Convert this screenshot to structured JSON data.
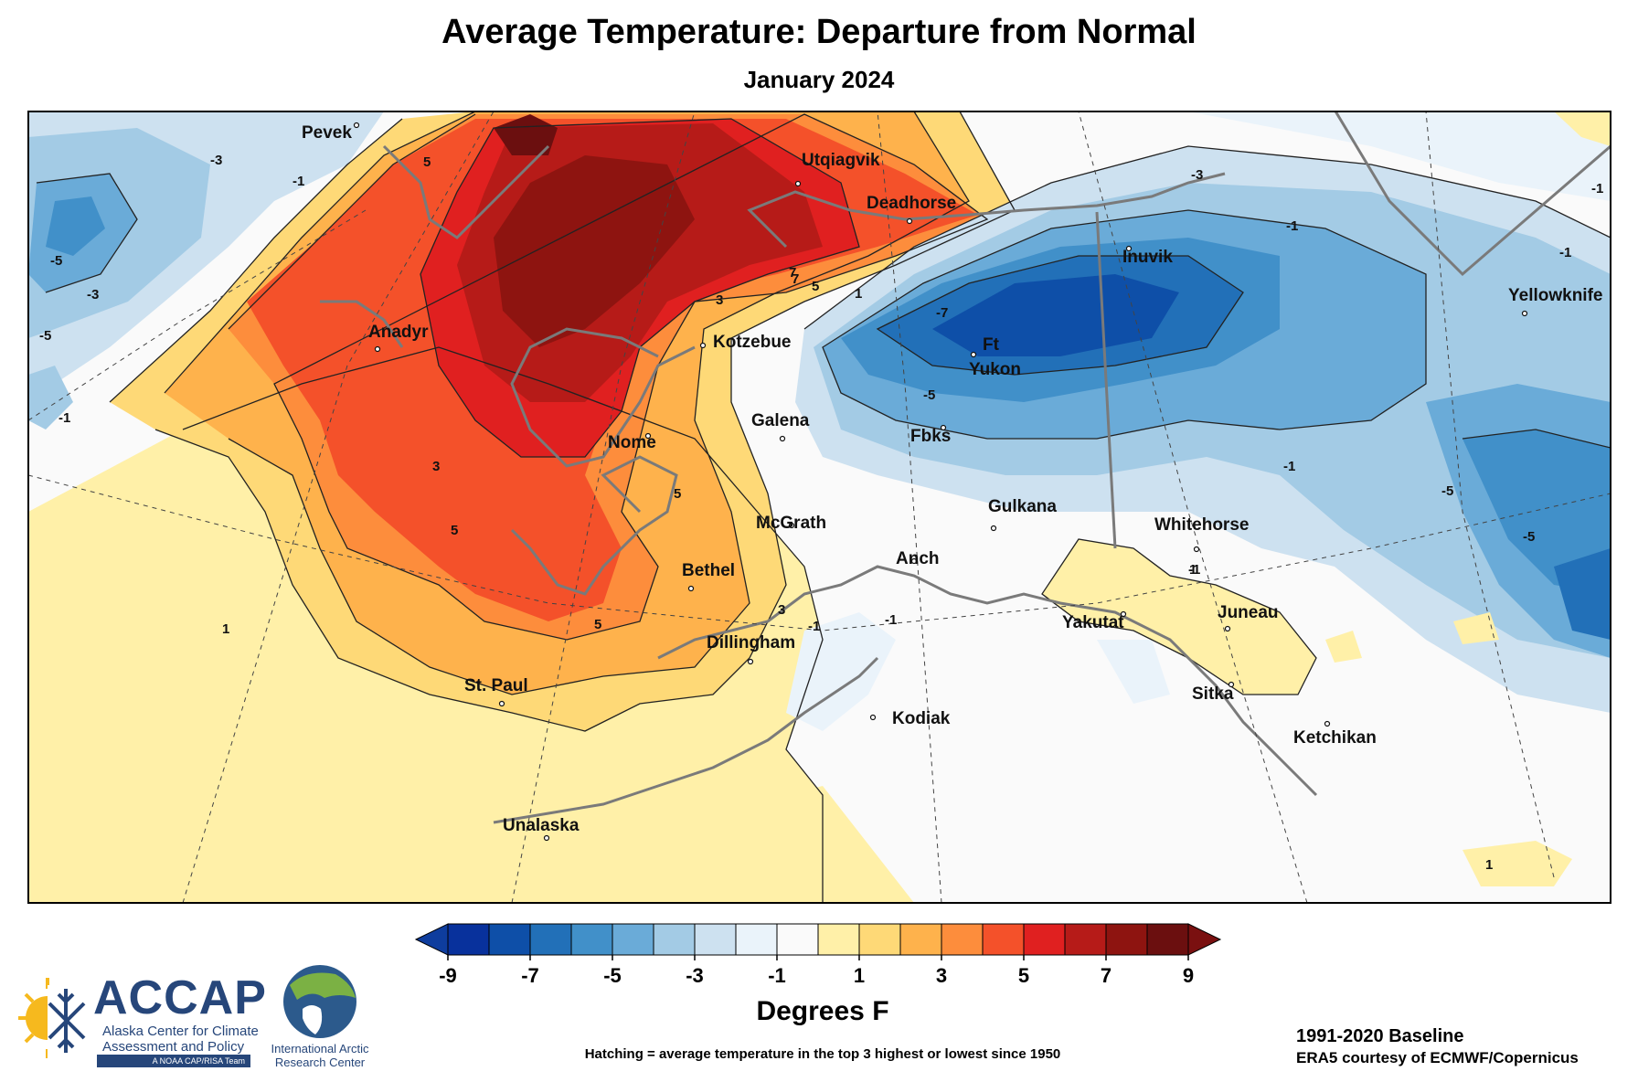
{
  "header": {
    "title": "Average Temperature: Departure from Normal",
    "subtitle": "January 2024"
  },
  "map": {
    "region": "Alaska and surrounding Arctic",
    "cities": [
      {
        "name": "Pevek"
      },
      {
        "name": "Utqiagvik"
      },
      {
        "name": "Deadhorse"
      },
      {
        "name": "Inuvik"
      },
      {
        "name": "Yellowknife"
      },
      {
        "name": "Anadyr"
      },
      {
        "name": "Kotzebue"
      },
      {
        "name": "Ft"
      },
      {
        "name": "Yukon"
      },
      {
        "name": "Galena"
      },
      {
        "name": "Fbks"
      },
      {
        "name": "Nome"
      },
      {
        "name": "Gulkana"
      },
      {
        "name": "McGrath"
      },
      {
        "name": "Whitehorse"
      },
      {
        "name": "Anch"
      },
      {
        "name": "Bethel"
      },
      {
        "name": "Yakutat"
      },
      {
        "name": "Juneau"
      },
      {
        "name": "Dillingham"
      },
      {
        "name": "St. Paul"
      },
      {
        "name": "Sitka"
      },
      {
        "name": "Kodiak"
      },
      {
        "name": "Ketchikan"
      },
      {
        "name": "Unalaska"
      }
    ],
    "contour_labels": [
      "5",
      "-1",
      "-3",
      "-3",
      "-5",
      "-5",
      "3",
      "7",
      "5",
      "1",
      "-7",
      "-5",
      "-1",
      "3",
      "5",
      "5",
      "1",
      "5",
      "-1",
      "3",
      "-1",
      "-1",
      "-5",
      "-1",
      "-1",
      "1",
      "1",
      "-3",
      "-1",
      "7",
      "-1",
      "-5"
    ]
  },
  "colorbar": {
    "tick_labels": [
      "-9",
      "-7",
      "-5",
      "-3",
      "-1",
      "1",
      "3",
      "5",
      "7",
      "9"
    ],
    "colors": [
      "#08319c",
      "#0e4fa8",
      "#2270b8",
      "#4190c9",
      "#6aabd8",
      "#a3cbe5",
      "#cde1f0",
      "#eaf3fa",
      "#fafafa",
      "#fff0a8",
      "#fed977",
      "#feb24c",
      "#fd8d3c",
      "#f4512a",
      "#e02020",
      "#b61b18",
      "#8e1410",
      "#6b0f0f"
    ],
    "extend_low_color": "#0e3d9e",
    "extend_high_color": "#7a1010",
    "title": "Degrees F"
  },
  "notes": {
    "hatching": "Hatching = average temperature in the top 3 highest or lowest since 1950",
    "baseline": "1991-2020 Baseline",
    "credit": "ERA5 courtesy of ECMWF/Copernicus"
  },
  "logos": {
    "accap_acronym": "ACCAP",
    "accap_name_line1": "Alaska Center for Climate",
    "accap_name_line2": "Assessment and Policy",
    "accap_tagline": "A NOAA CAP/RISA Team",
    "iarc_line1": "International Arctic",
    "iarc_line2": "Research Center"
  }
}
